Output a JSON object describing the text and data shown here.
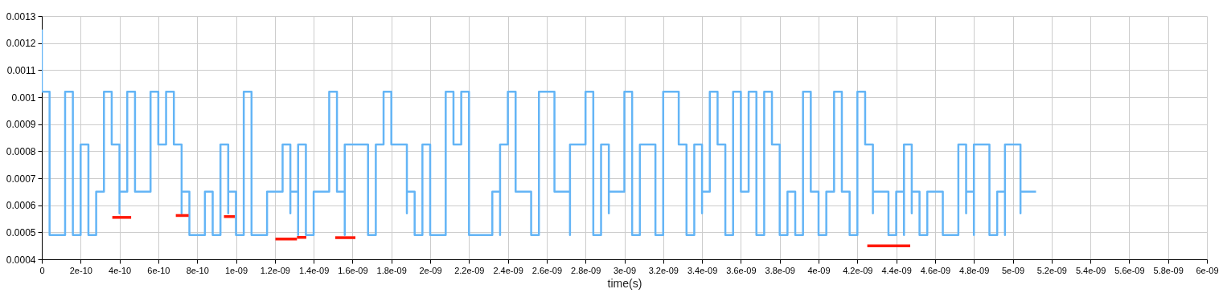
{
  "chart_data": {
    "type": "step",
    "xlabel": "time(s)",
    "xlim": [
      0,
      6e-09
    ],
    "ylim": [
      0.0004,
      0.0013
    ],
    "xticks": [
      0,
      {
        "value": 2e-10,
        "label": "2e-10"
      },
      {
        "value": 4e-10,
        "label": "4e-10"
      },
      {
        "value": 6e-10,
        "label": "6e-10"
      },
      {
        "value": 8e-10,
        "label": "8e-10"
      },
      {
        "value": 1e-09,
        "label": "1e-09"
      },
      {
        "value": 1.2e-09,
        "label": "1.2e-09"
      },
      {
        "value": 1.4e-09,
        "label": "1.4e-09"
      },
      {
        "value": 1.6e-09,
        "label": "1.6e-09"
      },
      {
        "value": 1.8e-09,
        "label": "1.8e-09"
      },
      {
        "value": 2e-09,
        "label": "2e-09"
      },
      {
        "value": 2.2e-09,
        "label": "2.2e-09"
      },
      {
        "value": 2.4e-09,
        "label": "2.4e-09"
      },
      {
        "value": 2.6e-09,
        "label": "2.6e-09"
      },
      {
        "value": 2.8e-09,
        "label": "2.8e-09"
      },
      {
        "value": 3e-09,
        "label": "3e-09"
      },
      {
        "value": 3.2e-09,
        "label": "3.2e-09"
      },
      {
        "value": 3.4e-09,
        "label": "3.4e-09"
      },
      {
        "value": 3.6e-09,
        "label": "3.6e-09"
      },
      {
        "value": 3.8e-09,
        "label": "3.8e-09"
      },
      {
        "value": 4e-09,
        "label": "4e-09"
      },
      {
        "value": 4.2e-09,
        "label": "4.2e-09"
      },
      {
        "value": 4.4e-09,
        "label": "4.4e-09"
      },
      {
        "value": 4.6e-09,
        "label": "4.6e-09"
      },
      {
        "value": 4.8e-09,
        "label": "4.8e-09"
      },
      {
        "value": 5e-09,
        "label": "5e-09"
      },
      {
        "value": 5.2e-09,
        "label": "5.2e-09"
      },
      {
        "value": 5.4e-09,
        "label": "5.4e-09"
      },
      {
        "value": 5.6e-09,
        "label": "5.6e-09"
      },
      {
        "value": 5.8e-09,
        "label": "5.8e-09"
      },
      {
        "value": 6e-09,
        "label": "6e-09"
      }
    ],
    "yticks": [
      0.0004,
      0.0005,
      0.0006,
      0.0007,
      0.0008,
      0.0009,
      0.001,
      0.0011,
      0.0012,
      0.0013
    ],
    "grid": true,
    "series": [
      {
        "color": "#64b5f6",
        "x": [
          0,
          0,
          4e-11,
          1.2e-10,
          1.6e-10,
          2e-10,
          2.4e-10,
          2.8e-10,
          3.2e-10,
          3.6e-10,
          4e-10,
          4e-10,
          4.4e-10,
          4.8e-10,
          5.6e-10,
          6e-10,
          6.4e-10,
          6.8e-10,
          7.2e-10,
          7.2e-10,
          7.6e-10,
          8.4e-10,
          8.8e-10,
          9.2e-10,
          9.6e-10,
          9.6e-10,
          1e-09,
          1.04e-09,
          1.08e-09,
          1.16e-09,
          1.24e-09,
          1.28e-09,
          1.28e-09,
          1.32e-09,
          1.32e-09,
          1.36e-09,
          1.4e-09,
          1.48e-09,
          1.52e-09,
          1.56e-09,
          1.56e-09,
          1.68e-09,
          1.72e-09,
          1.76e-09,
          1.8e-09,
          1.88e-09,
          1.88e-09,
          1.92e-09,
          1.96e-09,
          2e-09,
          2.08e-09,
          2.12e-09,
          2.16e-09,
          2.2e-09,
          2.32e-09,
          2.36e-09,
          2.36e-09,
          2.4e-09,
          2.44e-09,
          2.52e-09,
          2.56e-09,
          2.64e-09,
          2.72e-09,
          2.72e-09,
          2.8e-09,
          2.84e-09,
          2.88e-09,
          2.92e-09,
          2.92e-09,
          3e-09,
          3.04e-09,
          3.08e-09,
          3.16e-09,
          3.2e-09,
          3.28e-09,
          3.32e-09,
          3.36e-09,
          3.4e-09,
          3.4e-09,
          3.44e-09,
          3.48e-09,
          3.52e-09,
          3.56e-09,
          3.6e-09,
          3.64e-09,
          3.68e-09,
          3.72e-09,
          3.76e-09,
          3.8e-09,
          3.84e-09,
          3.88e-09,
          3.92e-09,
          3.96e-09,
          4e-09,
          4.04e-09,
          4.08e-09,
          4.12e-09,
          4.16e-09,
          4.2e-09,
          4.24e-09,
          4.28e-09,
          4.28e-09,
          4.36e-09,
          4.4e-09,
          4.44e-09,
          4.44e-09,
          4.48e-09,
          4.48e-09,
          4.52e-09,
          4.56e-09,
          4.64e-09,
          4.72e-09,
          4.76e-09,
          4.76e-09,
          4.8e-09,
          4.8e-09,
          4.88e-09,
          4.92e-09,
          4.96e-09,
          4.96e-09,
          5.04e-09,
          5.04e-09,
          5.12e-09
        ],
        "values": [
          0.00125,
          0.00102,
          0.00049,
          0.00102,
          0.00049,
          0.000825,
          0.00049,
          0.00065,
          0.00102,
          0.000825,
          0.00057,
          0.00065,
          0.00102,
          0.00065,
          0.00102,
          0.000825,
          0.00102,
          0.000825,
          0.00057,
          0.00065,
          0.00049,
          0.00065,
          0.00049,
          0.000825,
          0.00057,
          0.00065,
          0.00049,
          0.00102,
          0.00049,
          0.00065,
          0.000825,
          0.00057,
          0.00065,
          0.00049,
          0.000825,
          0.00049,
          0.00065,
          0.00102,
          0.00065,
          0.00049,
          0.000825,
          0.00049,
          0.000825,
          0.00102,
          0.000825,
          0.00057,
          0.00065,
          0.00049,
          0.000825,
          0.00049,
          0.00102,
          0.000825,
          0.00102,
          0.00049,
          0.00065,
          0.00049,
          0.000825,
          0.00102,
          0.00065,
          0.00049,
          0.00102,
          0.00065,
          0.00049,
          0.000825,
          0.00102,
          0.00049,
          0.000825,
          0.00057,
          0.00065,
          0.00102,
          0.00049,
          0.000825,
          0.00049,
          0.00102,
          0.000825,
          0.00049,
          0.000825,
          0.00057,
          0.00065,
          0.00102,
          0.000825,
          0.00049,
          0.00102,
          0.00065,
          0.00102,
          0.00049,
          0.00102,
          0.000825,
          0.00049,
          0.00065,
          0.00049,
          0.00102,
          0.00065,
          0.00049,
          0.00065,
          0.00102,
          0.00065,
          0.00049,
          0.00102,
          0.000825,
          0.00057,
          0.00065,
          0.00049,
          0.00065,
          0.00049,
          0.000825,
          0.00057,
          0.00065,
          0.00049,
          0.00065,
          0.00049,
          0.000825,
          0.00057,
          0.00065,
          0.00049,
          0.000825,
          0.00049,
          0.00065,
          0.00049,
          0.000825,
          0.00057,
          0.00065,
          0.00065
        ]
      },
      {
        "type": "line",
        "color": "#ff1a0a",
        "x": [
          3.63e-10,
          4.6e-10
        ],
        "values": [
          0.000555,
          0.000555
        ]
      },
      {
        "type": "line",
        "color": "#ff1a0a",
        "x": [
          6.9e-10,
          7.56e-10
        ],
        "values": [
          0.000562,
          0.000562
        ]
      },
      {
        "type": "line",
        "color": "#ff1a0a",
        "x": [
          9.38e-10,
          9.94e-10
        ],
        "values": [
          0.000558,
          0.000558
        ]
      },
      {
        "type": "line",
        "color": "#ff1a0a",
        "x": [
          1.203e-09,
          1.314e-09
        ],
        "values": [
          0.000475,
          0.000475
        ]
      },
      {
        "type": "line",
        "color": "#ff1a0a",
        "x": [
          1.314e-09,
          1.362e-09
        ],
        "values": [
          0.000481,
          0.000481
        ]
      },
      {
        "type": "line",
        "color": "#ff1a0a",
        "x": [
          1.511e-09,
          1.615e-09
        ],
        "values": [
          0.00048,
          0.00048
        ]
      },
      {
        "type": "line",
        "color": "#ff1a0a",
        "x": [
          4.251e-09,
          4.472e-09
        ],
        "values": [
          0.00045,
          0.00045
        ]
      }
    ]
  }
}
